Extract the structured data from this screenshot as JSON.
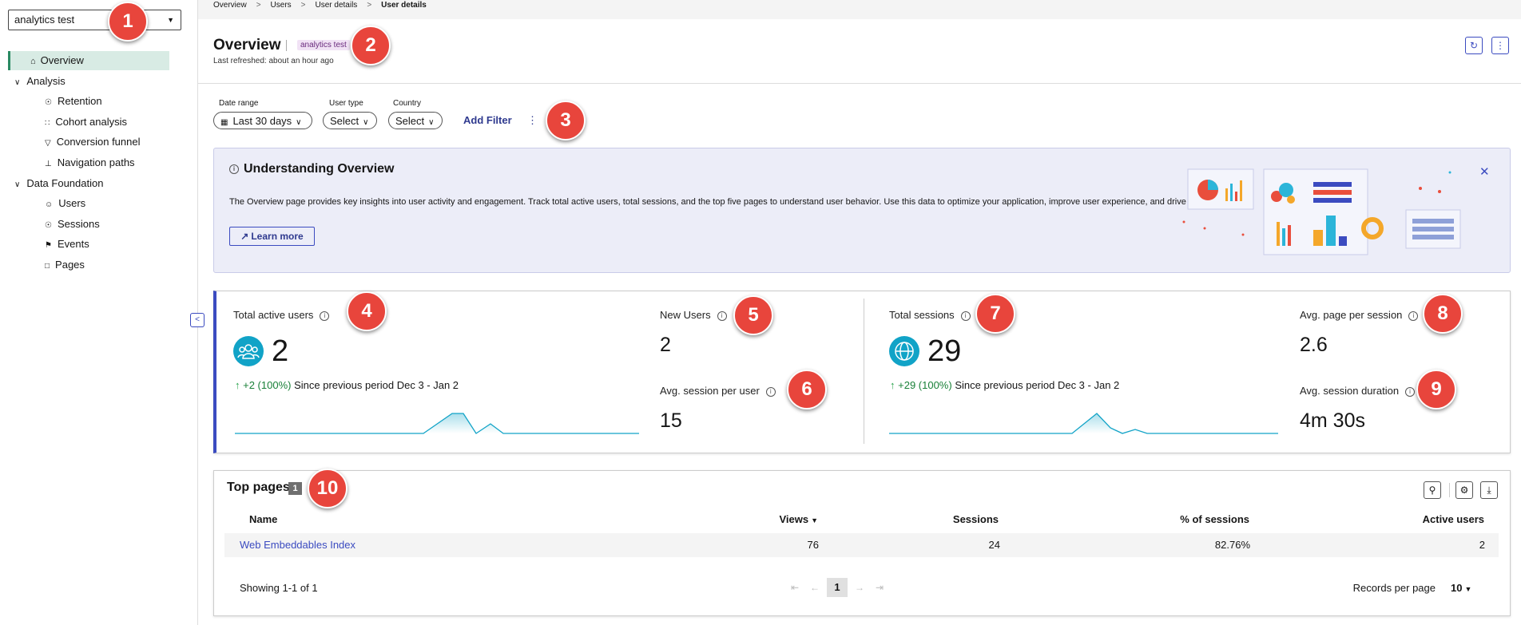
{
  "sidebar": {
    "project": "analytics test",
    "nav": [
      "Overview",
      "Analysis",
      "Retention",
      "Cohort analysis",
      "Conversion funnel",
      "Navigation paths",
      "Data Foundation",
      "Users",
      "Sessions",
      "Events",
      "Pages"
    ]
  },
  "breadcrumb": [
    "Overview",
    "Users",
    "User details",
    "User details"
  ],
  "header": {
    "title": "Overview",
    "tag": "analytics test",
    "refreshed": "Last refreshed: about an hour ago"
  },
  "filters": {
    "items": [
      {
        "label": "Date range",
        "value": "Last 30 days"
      },
      {
        "label": "User type",
        "value": "Select"
      },
      {
        "label": "Country",
        "value": "Select"
      }
    ],
    "add": "Add Filter"
  },
  "banner": {
    "title": "Understanding Overview",
    "text": "The Overview page provides key insights into user activity and engagement. Track total active users, total sessions, and the top five pages to understand user behavior. Use this data to optimize your application, improve user experience, and drive engagement.",
    "button": "Learn more"
  },
  "metrics": {
    "active_users": {
      "label": "Total active users",
      "value": 2,
      "change": "+2 (100%)",
      "comparison": "Since previous period Dec 3 - Jan 2"
    },
    "new_users": {
      "label": "New Users",
      "value": 2
    },
    "session_per_user": {
      "label": "Avg. session per user",
      "value": 15
    },
    "sessions": {
      "label": "Total sessions",
      "value": 29,
      "change": "+29 (100%)",
      "comparison": "Since previous period Dec 3 - Jan 2"
    },
    "page_per_session": {
      "label": "Avg. page per session",
      "value": 2.6
    },
    "session_duration": {
      "label": "Avg. session duration",
      "value": "4m 30s"
    }
  },
  "top_pages": {
    "title": "Top pages",
    "count": 1,
    "columns": [
      "Name",
      "Views",
      "Sessions",
      "% of sessions",
      "Active users"
    ],
    "rows": [
      [
        "Web Embeddables Index",
        76,
        24,
        "82.76%",
        2
      ]
    ],
    "showing": "Showing 1-1 of 1",
    "page": 1,
    "records_label": "Records per page",
    "records": 10
  },
  "callouts": [
    "1",
    "2",
    "3",
    "4",
    "5",
    "6",
    "7",
    "8",
    "9",
    "10"
  ]
}
